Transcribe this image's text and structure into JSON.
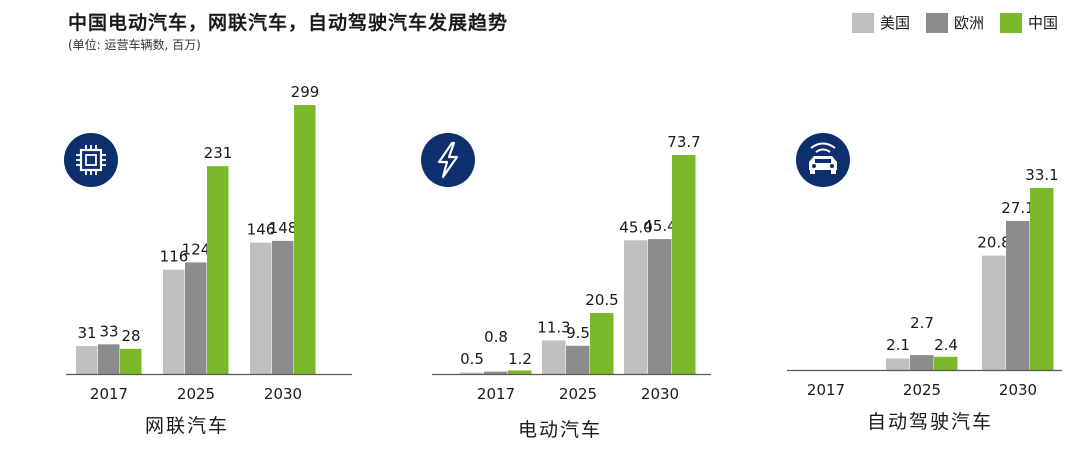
{
  "header": {
    "title": "中国电动汽车，网联汽车，自动驾驶汽车发展趋势",
    "subtitle": "(单位: 运营车辆数, 百万)"
  },
  "legend": [
    {
      "label": "美国",
      "color": "#bfbfbf"
    },
    {
      "label": "欧洲",
      "color": "#8c8c8c"
    },
    {
      "label": "中国",
      "color": "#7ab929"
    }
  ],
  "icon_color": "#0d2f6e",
  "chart_data": [
    {
      "type": "bar",
      "title": "网联汽车",
      "icon": "chip-icon",
      "categories": [
        "2017",
        "2025",
        "2030"
      ],
      "series": [
        {
          "name": "美国",
          "values": [
            31,
            116,
            146
          ],
          "labels": [
            "31",
            "116",
            "146"
          ]
        },
        {
          "name": "欧洲",
          "values": [
            33,
            124,
            148
          ],
          "labels": [
            "33",
            "124",
            "148"
          ]
        },
        {
          "name": "中国",
          "values": [
            28,
            231,
            299
          ],
          "labels": [
            "28",
            "231",
            "299"
          ]
        }
      ],
      "ylim": [
        0,
        299
      ]
    },
    {
      "type": "bar",
      "title": "电动汽车",
      "icon": "lightning-icon",
      "categories": [
        "2017",
        "2025",
        "2030"
      ],
      "series": [
        {
          "name": "美国",
          "values": [
            0.5,
            11.3,
            45.0
          ],
          "labels": [
            "0.5",
            "11.3",
            "45.0"
          ]
        },
        {
          "name": "欧洲",
          "values": [
            0.8,
            9.5,
            45.4
          ],
          "labels": [
            "0.8",
            "9.5",
            "45.4"
          ]
        },
        {
          "name": "中国",
          "values": [
            1.2,
            20.5,
            73.7
          ],
          "labels": [
            "1.2",
            "20.5",
            "73.7"
          ]
        }
      ],
      "ylim": [
        0,
        73.7
      ]
    },
    {
      "type": "bar",
      "title": "自动驾驶汽车",
      "icon": "autonomous-car-icon",
      "categories": [
        "2017",
        "2025",
        "2030"
      ],
      "series": [
        {
          "name": "美国",
          "values": [
            0,
            2.1,
            20.8
          ],
          "labels": [
            "",
            "2.1",
            "20.8"
          ]
        },
        {
          "name": "欧洲",
          "values": [
            0,
            2.7,
            27.1
          ],
          "labels": [
            "",
            "2.7",
            "27.1"
          ]
        },
        {
          "name": "中国",
          "values": [
            0,
            2.4,
            33.1
          ],
          "labels": [
            "",
            "2.4",
            "33.1"
          ]
        }
      ],
      "ylim": [
        0,
        33.1
      ]
    }
  ]
}
